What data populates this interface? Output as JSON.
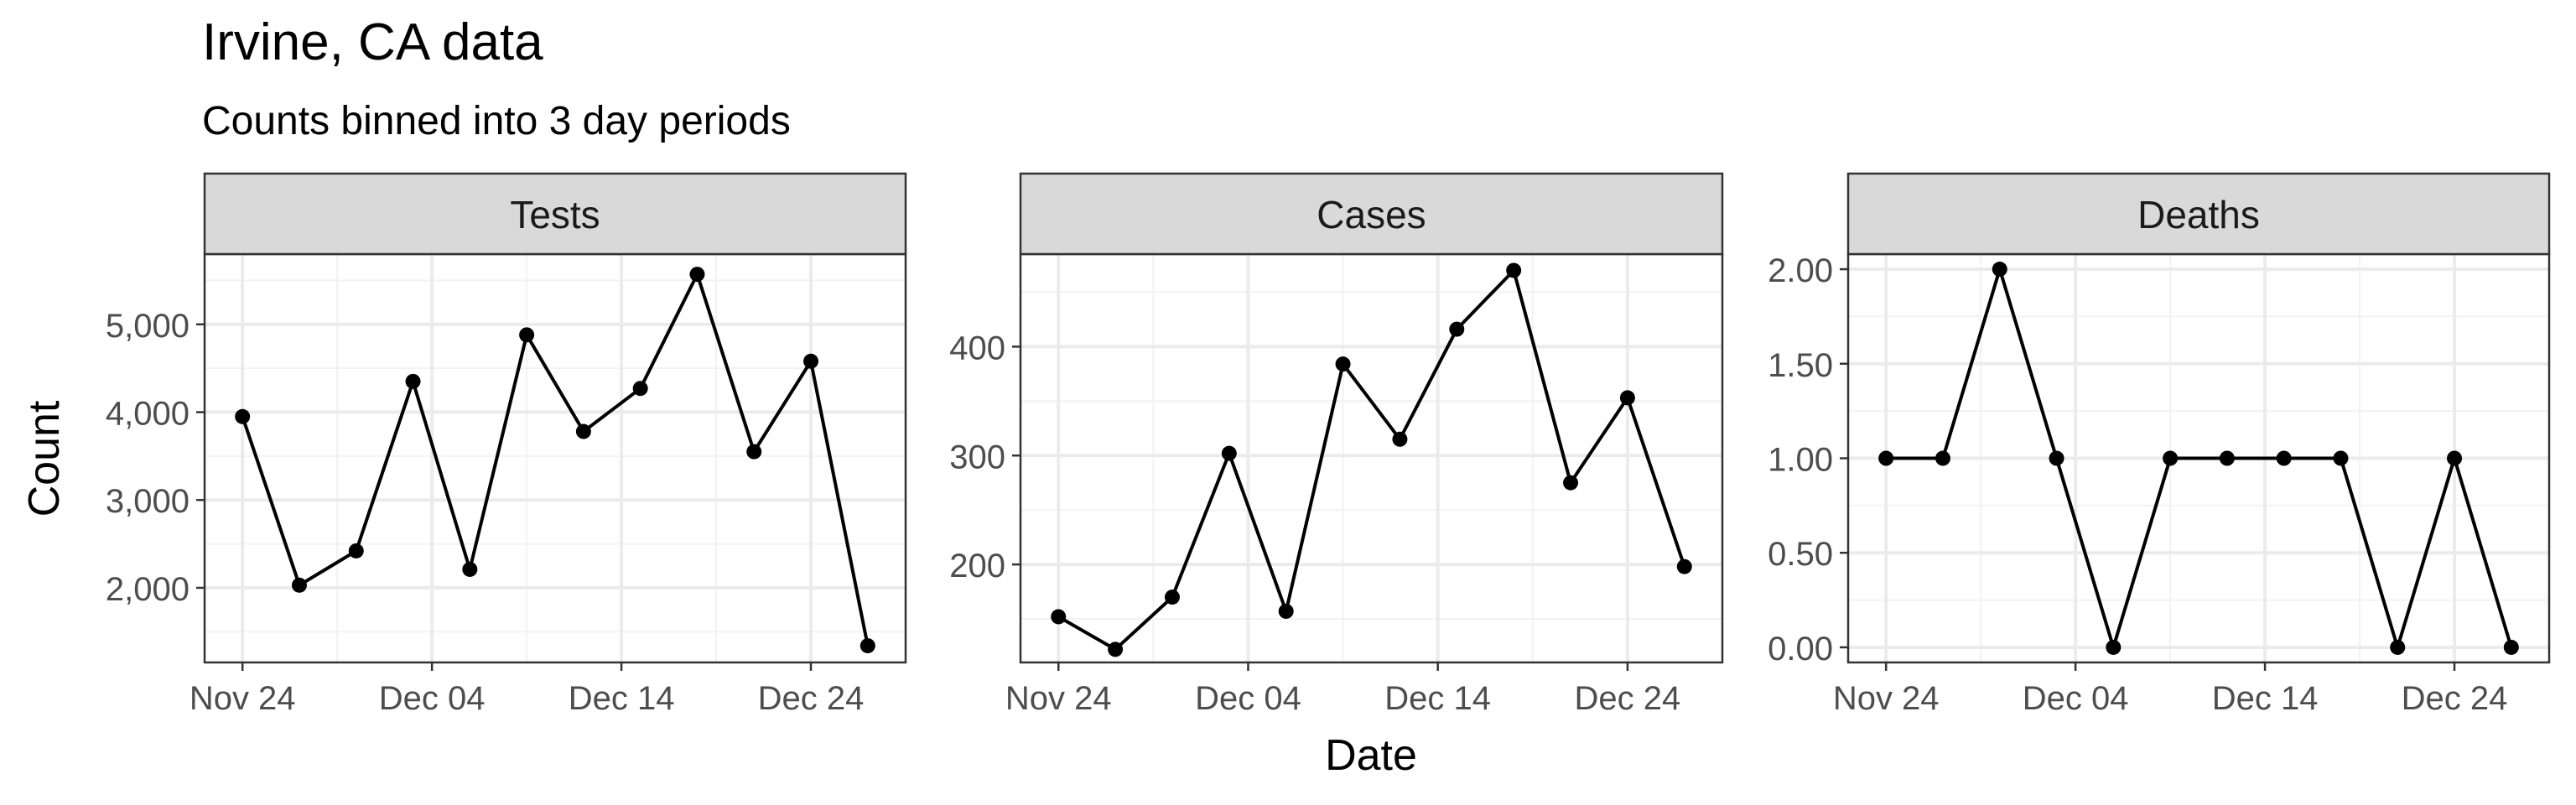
{
  "title": "Irvine, CA data",
  "subtitle": "Counts binned into 3 day periods",
  "chart_data": {
    "type": "line",
    "xlabel": "Date",
    "ylabel": "Count",
    "x_tick_labels": [
      "Nov 24",
      "Dec 04",
      "Dec 14",
      "Dec 24"
    ],
    "x_ticks": [
      "2020-11-24",
      "2020-12-04",
      "2020-12-14",
      "2020-12-24"
    ],
    "x_range": [
      "2020-11-22",
      "2020-12-29"
    ],
    "grid": true,
    "facets": [
      {
        "strip": "Tests",
        "ylim": [
          1150,
          5800
        ],
        "y_ticks": [
          2000,
          3000,
          4000,
          5000
        ],
        "y_tick_labels": [
          "2,000",
          "3,000",
          "4,000",
          "5,000"
        ],
        "x": [
          "2020-11-24",
          "2020-11-27",
          "2020-11-30",
          "2020-12-03",
          "2020-12-06",
          "2020-12-09",
          "2020-12-12",
          "2020-12-15",
          "2020-12-18",
          "2020-12-21",
          "2020-12-24",
          "2020-12-27"
        ],
        "values": [
          3950,
          2030,
          2420,
          4350,
          2210,
          4880,
          3780,
          4270,
          5570,
          3550,
          4580,
          1340
        ]
      },
      {
        "strip": "Cases",
        "ylim": [
          110,
          485
        ],
        "y_ticks": [
          200,
          300,
          400
        ],
        "y_tick_labels": [
          "200",
          "300",
          "400"
        ],
        "x": [
          "2020-11-24",
          "2020-11-27",
          "2020-11-30",
          "2020-12-03",
          "2020-12-06",
          "2020-12-09",
          "2020-12-12",
          "2020-12-15",
          "2020-12-18",
          "2020-12-21",
          "2020-12-24",
          "2020-12-27"
        ],
        "values": [
          152,
          122,
          170,
          302,
          157,
          384,
          315,
          416,
          470,
          275,
          353,
          198
        ]
      },
      {
        "strip": "Deaths",
        "ylim": [
          -0.08,
          2.08
        ],
        "y_ticks": [
          0,
          0.5,
          1,
          1.5,
          2
        ],
        "y_tick_labels": [
          "0.00",
          "0.50",
          "1.00",
          "1.50",
          "2.00"
        ],
        "x": [
          "2020-11-24",
          "2020-11-27",
          "2020-11-30",
          "2020-12-03",
          "2020-12-06",
          "2020-12-09",
          "2020-12-12",
          "2020-12-15",
          "2020-12-18",
          "2020-12-21",
          "2020-12-24",
          "2020-12-27"
        ],
        "values": [
          1,
          1,
          2,
          1,
          0,
          1,
          1,
          1,
          1,
          0,
          1,
          0
        ]
      }
    ]
  },
  "colors": {
    "line": "#000000",
    "point": "#000000",
    "strip_fill": "#d9d9d9",
    "strip_border": "#333333",
    "panel_border": "#333333",
    "grid_major": "#ebebeb",
    "grid_minor": "#f2f2f2",
    "tick_label": "#4d4d4d"
  }
}
